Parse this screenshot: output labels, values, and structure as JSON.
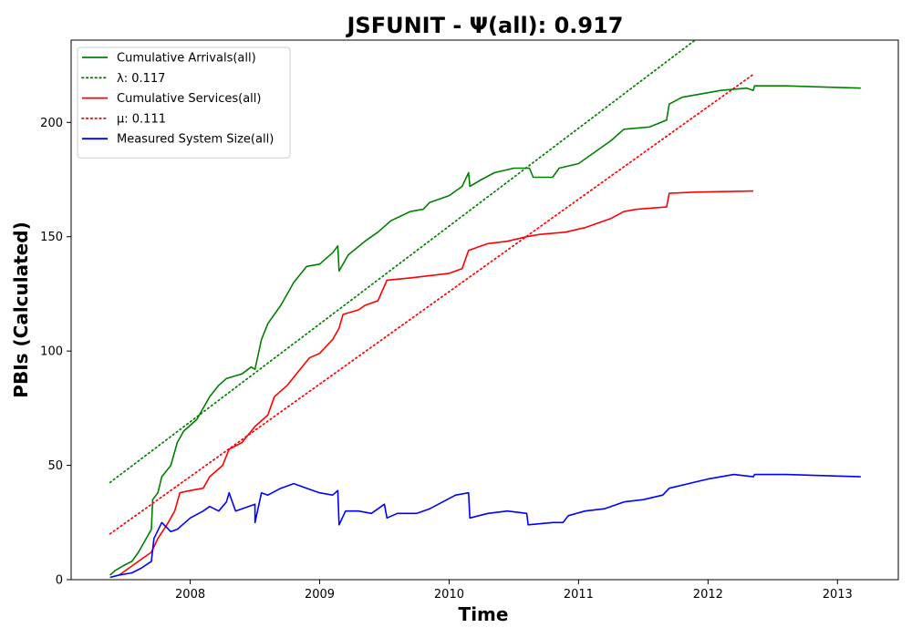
{
  "chart_data": {
    "type": "line",
    "title": "JSFUNIT -  Ψ(all): 0.917",
    "xlabel": "Time",
    "ylabel": "PBIs (Calculated)",
    "xlim": [
      2007.08,
      2013.47
    ],
    "ylim": [
      0,
      236
    ],
    "x_ticks": [
      2008,
      2009,
      2010,
      2011,
      2012,
      2013
    ],
    "y_ticks": [
      0,
      50,
      100,
      150,
      200
    ],
    "grid": false,
    "legend_position": "top-left",
    "legend": [
      {
        "label": "Cumulative Arrivals(all)",
        "color": "#008000",
        "style": "solid"
      },
      {
        "label": "λ: 0.117",
        "color": "#008000",
        "style": "dotted"
      },
      {
        "label": "Cumulative Services(all)",
        "color": "#ff0000",
        "style": "solid"
      },
      {
        "label": "μ: 0.111",
        "color": "#ff0000",
        "style": "dotted"
      },
      {
        "label": "Measured System Size(all)",
        "color": "#0000ff",
        "style": "solid"
      }
    ],
    "series": [
      {
        "name": "Cumulative Arrivals(all)",
        "color": "#008000",
        "style": "solid",
        "points": [
          [
            2007.38,
            2
          ],
          [
            2007.42,
            4
          ],
          [
            2007.48,
            6
          ],
          [
            2007.55,
            8
          ],
          [
            2007.6,
            12
          ],
          [
            2007.65,
            17
          ],
          [
            2007.7,
            22
          ],
          [
            2007.71,
            35
          ],
          [
            2007.75,
            38
          ],
          [
            2007.78,
            45
          ],
          [
            2007.85,
            50
          ],
          [
            2007.9,
            60
          ],
          [
            2007.95,
            65
          ],
          [
            2008.05,
            70
          ],
          [
            2008.15,
            80
          ],
          [
            2008.22,
            85
          ],
          [
            2008.28,
            88
          ],
          [
            2008.4,
            90
          ],
          [
            2008.47,
            93
          ],
          [
            2008.5,
            92
          ],
          [
            2008.55,
            105
          ],
          [
            2008.6,
            112
          ],
          [
            2008.7,
            120
          ],
          [
            2008.8,
            130
          ],
          [
            2008.9,
            137
          ],
          [
            2009.0,
            138
          ],
          [
            2009.1,
            143
          ],
          [
            2009.14,
            146
          ],
          [
            2009.15,
            135
          ],
          [
            2009.22,
            142
          ],
          [
            2009.35,
            148
          ],
          [
            2009.45,
            152
          ],
          [
            2009.55,
            157
          ],
          [
            2009.7,
            161
          ],
          [
            2009.8,
            162
          ],
          [
            2009.85,
            165
          ],
          [
            2010.0,
            168
          ],
          [
            2010.1,
            172
          ],
          [
            2010.15,
            178
          ],
          [
            2010.16,
            172
          ],
          [
            2010.25,
            175
          ],
          [
            2010.35,
            178
          ],
          [
            2010.5,
            180
          ],
          [
            2010.62,
            180
          ],
          [
            2010.65,
            176
          ],
          [
            2010.8,
            176
          ],
          [
            2010.85,
            180
          ],
          [
            2011.0,
            182
          ],
          [
            2011.1,
            186
          ],
          [
            2011.25,
            192
          ],
          [
            2011.35,
            197
          ],
          [
            2011.55,
            198
          ],
          [
            2011.68,
            201
          ],
          [
            2011.7,
            208
          ],
          [
            2011.8,
            211
          ],
          [
            2011.9,
            212
          ],
          [
            2012.1,
            214
          ],
          [
            2012.3,
            215
          ],
          [
            2012.35,
            214
          ],
          [
            2012.36,
            216
          ],
          [
            2012.6,
            216
          ],
          [
            2013.18,
            215
          ]
        ]
      },
      {
        "name": "λ: 0.117",
        "color": "#008000",
        "style": "dotted",
        "points": [
          [
            2007.38,
            42.5
          ],
          [
            2011.9,
            236
          ]
        ]
      },
      {
        "name": "Cumulative Services(all)",
        "color": "#ff0000",
        "style": "solid",
        "points": [
          [
            2007.45,
            2
          ],
          [
            2007.5,
            4
          ],
          [
            2007.6,
            8
          ],
          [
            2007.7,
            12
          ],
          [
            2007.75,
            18
          ],
          [
            2007.82,
            24
          ],
          [
            2007.88,
            30
          ],
          [
            2007.92,
            38
          ],
          [
            2008.0,
            39
          ],
          [
            2008.1,
            40
          ],
          [
            2008.15,
            45
          ],
          [
            2008.25,
            50
          ],
          [
            2008.3,
            57
          ],
          [
            2008.4,
            60
          ],
          [
            2008.5,
            67
          ],
          [
            2008.6,
            72
          ],
          [
            2008.65,
            80
          ],
          [
            2008.75,
            85
          ],
          [
            2008.82,
            90
          ],
          [
            2008.92,
            97
          ],
          [
            2009.0,
            99
          ],
          [
            2009.1,
            105
          ],
          [
            2009.15,
            110
          ],
          [
            2009.18,
            116
          ],
          [
            2009.3,
            118
          ],
          [
            2009.35,
            120
          ],
          [
            2009.45,
            122
          ],
          [
            2009.52,
            131
          ],
          [
            2009.7,
            132
          ],
          [
            2009.85,
            133
          ],
          [
            2010.0,
            134
          ],
          [
            2010.1,
            136
          ],
          [
            2010.15,
            144
          ],
          [
            2010.3,
            147
          ],
          [
            2010.45,
            148
          ],
          [
            2010.6,
            150
          ],
          [
            2010.7,
            151
          ],
          [
            2010.9,
            152
          ],
          [
            2011.05,
            154
          ],
          [
            2011.15,
            156
          ],
          [
            2011.25,
            158
          ],
          [
            2011.35,
            161
          ],
          [
            2011.45,
            162
          ],
          [
            2011.68,
            163
          ],
          [
            2011.7,
            169
          ],
          [
            2011.9,
            169.5
          ],
          [
            2012.35,
            170
          ]
        ]
      },
      {
        "name": "μ: 0.111",
        "color": "#ff0000",
        "style": "dotted",
        "points": [
          [
            2007.38,
            20
          ],
          [
            2012.35,
            221
          ]
        ]
      },
      {
        "name": "Measured System Size(all)",
        "color": "#0000ff",
        "style": "solid",
        "points": [
          [
            2007.38,
            1
          ],
          [
            2007.45,
            2
          ],
          [
            2007.55,
            3
          ],
          [
            2007.62,
            5
          ],
          [
            2007.7,
            8
          ],
          [
            2007.72,
            18
          ],
          [
            2007.78,
            25
          ],
          [
            2007.85,
            21
          ],
          [
            2007.9,
            22
          ],
          [
            2008.0,
            27
          ],
          [
            2008.1,
            30
          ],
          [
            2008.15,
            32
          ],
          [
            2008.22,
            30
          ],
          [
            2008.28,
            34
          ],
          [
            2008.3,
            38
          ],
          [
            2008.35,
            30
          ],
          [
            2008.5,
            33
          ],
          [
            2008.5,
            25
          ],
          [
            2008.55,
            38
          ],
          [
            2008.6,
            37
          ],
          [
            2008.7,
            40
          ],
          [
            2008.8,
            42
          ],
          [
            2008.9,
            40
          ],
          [
            2009.0,
            38
          ],
          [
            2009.1,
            37
          ],
          [
            2009.14,
            39
          ],
          [
            2009.15,
            24
          ],
          [
            2009.2,
            30
          ],
          [
            2009.3,
            30
          ],
          [
            2009.4,
            29
          ],
          [
            2009.5,
            33
          ],
          [
            2009.52,
            27
          ],
          [
            2009.6,
            29
          ],
          [
            2009.75,
            29
          ],
          [
            2009.85,
            31
          ],
          [
            2009.95,
            34
          ],
          [
            2010.05,
            37
          ],
          [
            2010.15,
            38
          ],
          [
            2010.16,
            27
          ],
          [
            2010.3,
            29
          ],
          [
            2010.45,
            30
          ],
          [
            2010.6,
            29
          ],
          [
            2010.61,
            24
          ],
          [
            2010.8,
            25
          ],
          [
            2010.88,
            25
          ],
          [
            2010.92,
            28
          ],
          [
            2011.05,
            30
          ],
          [
            2011.2,
            31
          ],
          [
            2011.35,
            34
          ],
          [
            2011.5,
            35
          ],
          [
            2011.65,
            37
          ],
          [
            2011.7,
            40
          ],
          [
            2011.85,
            42
          ],
          [
            2012.0,
            44
          ],
          [
            2012.2,
            46
          ],
          [
            2012.35,
            45
          ],
          [
            2012.36,
            46
          ],
          [
            2012.6,
            46
          ],
          [
            2013.18,
            45
          ]
        ]
      }
    ]
  }
}
